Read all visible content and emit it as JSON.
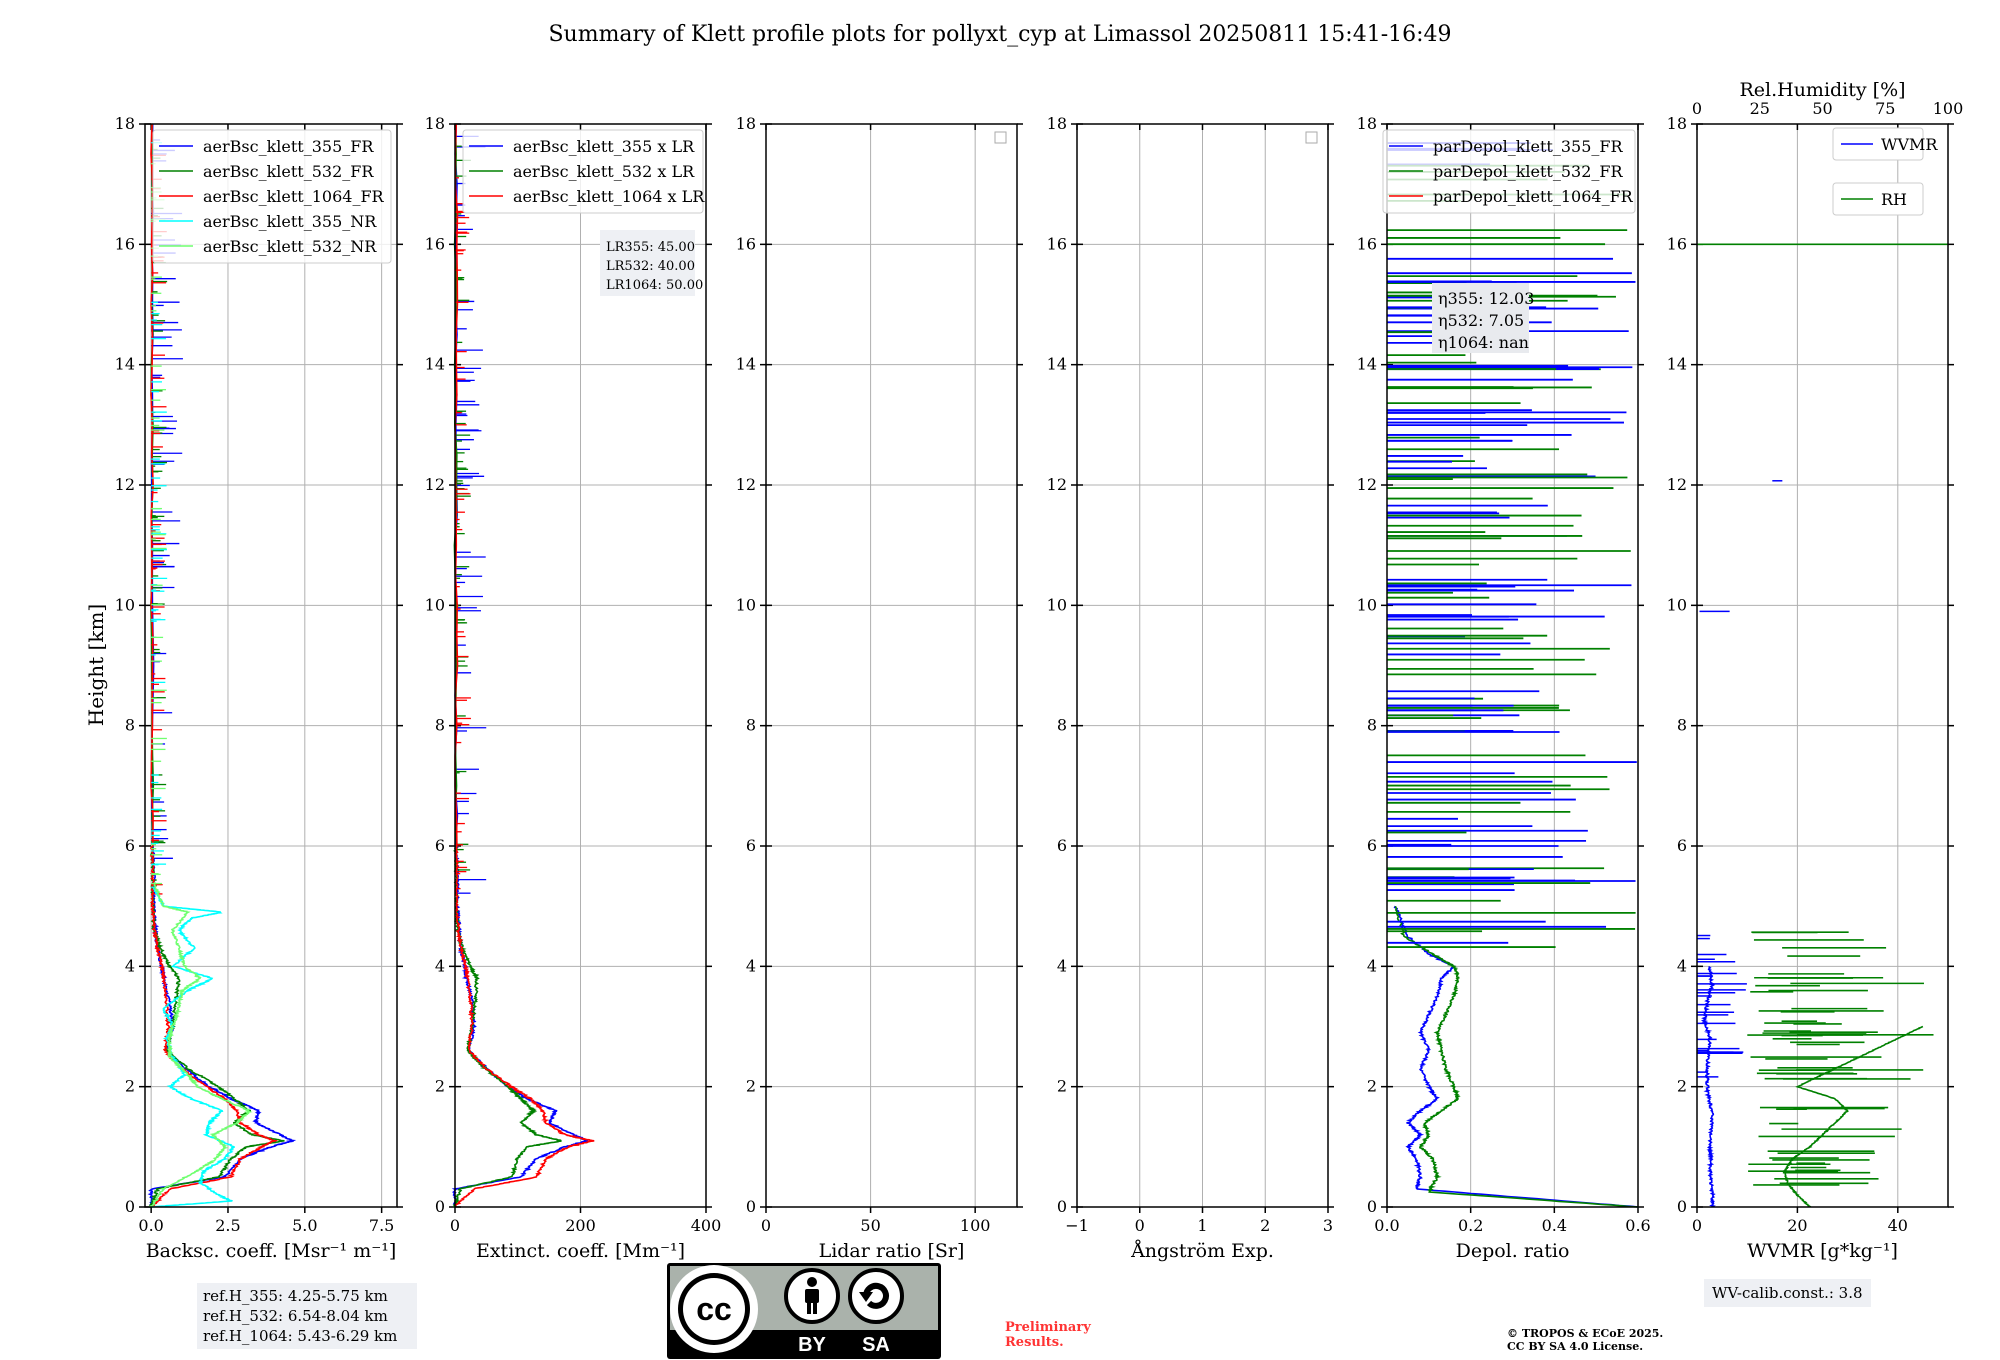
{
  "title": "Summary of Klett profile plots for pollyxt_cyp at Limassol 20250811 15:41-16:49",
  "colors": {
    "c355": "#0000ff",
    "c532": "#008000",
    "c1064": "#ff0000",
    "c355nr": "#00ffff",
    "c532nr": "#6fff6f",
    "grid": "#b0b0b0"
  },
  "chart_data": [
    {
      "type": "line",
      "name": "backscatter",
      "xlabel": "Backsc. coeff. [Msr⁻¹ m⁻¹]",
      "ylabel": "Height [km]",
      "xlim": [
        -0.2,
        8.0
      ],
      "ylim": [
        0,
        18
      ],
      "xticks": [
        0,
        2.5,
        5.0,
        7.5
      ],
      "xticklabels": [
        "0.0",
        "2.5",
        "5.0",
        "7.5"
      ],
      "yticks": [
        0,
        2,
        4,
        6,
        8,
        10,
        12,
        14,
        16,
        18
      ],
      "legend": [
        "aerBsc_klett_355_FR",
        "aerBsc_klett_532_FR",
        "aerBsc_klett_1064_FR",
        "aerBsc_klett_355_NR",
        "aerBsc_klett_532_NR"
      ],
      "series": [
        {
          "name": "aerBsc_klett_355_FR",
          "color": "#0000ff",
          "h": [
            0,
            0.3,
            0.5,
            0.8,
            1.0,
            1.1,
            1.2,
            1.4,
            1.6,
            1.8,
            2.0,
            2.3,
            2.6,
            3.0,
            3.4,
            3.8,
            4.0,
            4.3,
            4.6,
            5.0,
            5.5,
            6.0,
            18
          ],
          "v": [
            0,
            0,
            2.4,
            2.9,
            3.9,
            4.6,
            4.2,
            3.4,
            3.5,
            2.6,
            1.9,
            1.1,
            0.5,
            0.7,
            0.6,
            0.4,
            0.35,
            0.2,
            0.15,
            0.08,
            0.1,
            0.05,
            0.05
          ]
        },
        {
          "name": "aerBsc_klett_532_FR",
          "color": "#008000",
          "h": [
            0,
            0.3,
            0.5,
            0.8,
            1.0,
            1.1,
            1.2,
            1.4,
            1.6,
            1.8,
            2.0,
            2.3,
            2.6,
            3.0,
            3.4,
            3.8,
            4.0,
            4.3,
            4.6,
            5.0,
            5.5,
            6.0,
            18
          ],
          "v": [
            0,
            0.2,
            2.2,
            2.6,
            3.1,
            4.3,
            3.3,
            2.7,
            3.2,
            2.7,
            2.2,
            1.2,
            0.5,
            0.7,
            0.8,
            0.9,
            0.6,
            0.3,
            0.1,
            0.05,
            0.05,
            0.03,
            0.03
          ]
        },
        {
          "name": "aerBsc_klett_1064_FR",
          "color": "#ff0000",
          "h": [
            0,
            0.3,
            0.5,
            0.8,
            1.0,
            1.1,
            1.2,
            1.4,
            1.6,
            1.8,
            2.0,
            2.3,
            2.6,
            3.0,
            3.4,
            3.8,
            4.0,
            4.3,
            4.6,
            5.0,
            5.5,
            6.0,
            18
          ],
          "v": [
            0,
            0.6,
            2.6,
            2.9,
            3.6,
            4.0,
            3.5,
            2.9,
            2.8,
            2.4,
            1.8,
            1.0,
            0.45,
            0.55,
            0.5,
            0.4,
            0.35,
            0.2,
            0.1,
            0.05,
            0.05,
            0.03,
            0.03
          ]
        },
        {
          "name": "aerBsc_klett_355_NR",
          "color": "#00ffff",
          "h": [
            0,
            0.1,
            0.2,
            0.4,
            0.6,
            0.8,
            1.0,
            1.2,
            1.4,
            1.6,
            1.8,
            2.0,
            2.2,
            2.5,
            2.8,
            3.0,
            3.3,
            3.6,
            3.8,
            4.0,
            4.3,
            4.6,
            4.8,
            4.9,
            5.0,
            5.3
          ],
          "v": [
            0,
            2.6,
            2.2,
            1.6,
            1.7,
            2.4,
            2.7,
            1.8,
            1.9,
            2.3,
            1.3,
            0.6,
            1.1,
            0.7,
            0.5,
            0.7,
            0.4,
            1.2,
            2.0,
            0.7,
            1.4,
            0.9,
            1.3,
            2.3,
            0.4,
            0.1
          ]
        },
        {
          "name": "aerBsc_klett_532_NR",
          "color": "#6fff6f",
          "h": [
            0,
            0.3,
            0.6,
            0.8,
            1.0,
            1.2,
            1.4,
            1.6,
            1.8,
            2.0,
            2.2,
            2.5,
            2.8,
            3.0,
            3.3,
            3.6,
            3.8,
            4.0,
            4.3,
            4.6,
            4.9,
            5.0,
            5.4
          ],
          "v": [
            0,
            0.4,
            1.5,
            2.1,
            2.4,
            2.0,
            2.8,
            3.2,
            2.3,
            1.5,
            1.2,
            0.6,
            0.6,
            0.7,
            0.9,
            1.0,
            1.6,
            1.1,
            0.9,
            0.7,
            1.2,
            0.4,
            0.1
          ]
        }
      ]
    },
    {
      "type": "line",
      "name": "extinction",
      "xlabel": "Extinct. coeff. [Mm⁻¹]",
      "xlim": [
        0,
        400
      ],
      "ylim": [
        0,
        18
      ],
      "xticks": [
        0,
        200,
        400
      ],
      "xticklabels": [
        "0",
        "200",
        "400"
      ],
      "yticks": [
        0,
        2,
        4,
        6,
        8,
        10,
        12,
        14,
        16,
        18
      ],
      "legend": [
        "aerBsc_klett_355 x LR",
        "aerBsc_klett_532 x LR",
        "aerBsc_klett_1064 x LR"
      ],
      "series": [
        {
          "name": "aerBsc_klett_355 x LR",
          "color": "#0000ff",
          "h": [
            0,
            0.3,
            0.5,
            0.8,
            1.0,
            1.1,
            1.2,
            1.4,
            1.6,
            1.8,
            2.0,
            2.3,
            2.6,
            3.0,
            3.4,
            3.8,
            4.0,
            4.3,
            4.6,
            5.0,
            5.5,
            6.0,
            18
          ],
          "v": [
            0,
            0,
            105,
            130,
            175,
            210,
            190,
            150,
            160,
            115,
            85,
            50,
            22,
            30,
            28,
            18,
            16,
            9,
            7,
            4,
            4,
            2,
            2
          ]
        },
        {
          "name": "aerBsc_klett_532 x LR",
          "color": "#008000",
          "h": [
            0,
            0.3,
            0.5,
            0.8,
            1.0,
            1.1,
            1.2,
            1.4,
            1.6,
            1.8,
            2.0,
            2.3,
            2.6,
            3.0,
            3.4,
            3.8,
            4.0,
            4.3,
            4.6,
            5.0,
            5.5,
            6.0,
            18
          ],
          "v": [
            0,
            8,
            90,
            100,
            115,
            170,
            130,
            105,
            125,
            105,
            85,
            48,
            20,
            28,
            32,
            35,
            24,
            12,
            4,
            2,
            2,
            1,
            1
          ]
        },
        {
          "name": "aerBsc_klett_1064 x LR",
          "color": "#ff0000",
          "h": [
            0,
            0.3,
            0.5,
            0.8,
            1.0,
            1.1,
            1.2,
            1.4,
            1.6,
            1.8,
            2.0,
            2.3,
            2.6,
            3.0,
            3.4,
            3.8,
            4.0,
            4.3,
            4.6,
            5.0,
            5.5,
            6.0,
            18
          ],
          "v": [
            0,
            30,
            130,
            145,
            180,
            220,
            175,
            145,
            140,
            120,
            90,
            50,
            22,
            27,
            25,
            20,
            17,
            10,
            5,
            3,
            3,
            2,
            2
          ]
        }
      ]
    },
    {
      "type": "line",
      "name": "lidar_ratio",
      "xlabel": "Lidar ratio [Sr]",
      "xlim": [
        0,
        120
      ],
      "ylim": [
        0,
        18
      ],
      "xticks": [
        0,
        50,
        100
      ],
      "xticklabels": [
        "0",
        "50",
        "100"
      ],
      "yticks": [
        0,
        2,
        4,
        6,
        8,
        10,
        12,
        14,
        16,
        18
      ],
      "series": []
    },
    {
      "type": "line",
      "name": "angstrom",
      "xlabel": "Ångström Exp.",
      "xlim": [
        -1,
        3
      ],
      "ylim": [
        0,
        18
      ],
      "xticks": [
        -1,
        0,
        1,
        2,
        3
      ],
      "xticklabels": [
        "−1",
        "0",
        "1",
        "2",
        "3"
      ],
      "yticks": [
        0,
        2,
        4,
        6,
        8,
        10,
        12,
        14,
        16,
        18
      ],
      "series": []
    },
    {
      "type": "line",
      "name": "depol",
      "xlabel": "Depol. ratio",
      "xlim": [
        0,
        0.6
      ],
      "ylim": [
        0,
        18
      ],
      "xticks": [
        0,
        0.2,
        0.4,
        0.6
      ],
      "xticklabels": [
        "0.0",
        "0.2",
        "0.4",
        "0.6"
      ],
      "yticks": [
        0,
        2,
        4,
        6,
        8,
        10,
        12,
        14,
        16,
        18
      ],
      "legend": [
        "parDepol_klett_355_FR",
        "parDepol_klett_532_FR",
        "parDepol_klett_1064_FR"
      ],
      "series": [
        {
          "name": "parDepol_klett_355_FR",
          "color": "#0000ff",
          "h": [
            0,
            0.3,
            0.5,
            0.8,
            1.0,
            1.2,
            1.4,
            1.6,
            1.8,
            2.0,
            2.3,
            2.6,
            2.9,
            3.2,
            3.5,
            3.8,
            4.0,
            4.2,
            4.5,
            5.0
          ],
          "v": [
            0.6,
            0.07,
            0.08,
            0.07,
            0.05,
            0.08,
            0.05,
            0.08,
            0.12,
            0.1,
            0.08,
            0.1,
            0.08,
            0.1,
            0.12,
            0.13,
            0.16,
            0.1,
            0.05,
            0.02
          ]
        },
        {
          "name": "parDepol_klett_532_FR",
          "color": "#008000",
          "h": [
            0,
            0.25,
            0.5,
            0.8,
            1.0,
            1.2,
            1.4,
            1.6,
            1.8,
            2.0,
            2.3,
            2.6,
            2.9,
            3.2,
            3.5,
            3.8,
            4.0,
            4.2,
            4.5,
            5.0
          ],
          "v": [
            0.6,
            0.1,
            0.12,
            0.11,
            0.08,
            0.1,
            0.09,
            0.13,
            0.17,
            0.16,
            0.14,
            0.13,
            0.12,
            0.14,
            0.16,
            0.17,
            0.16,
            0.11,
            0.04,
            0.02
          ]
        }
      ]
    },
    {
      "type": "line",
      "name": "wvmr",
      "xlabel": "WVMR [g*kg⁻¹]",
      "xlim": [
        0,
        50
      ],
      "ylim": [
        0,
        18
      ],
      "xticks": [
        0,
        20,
        40
      ],
      "xticklabels": [
        "0",
        "20",
        "40"
      ],
      "yticks": [
        0,
        2,
        4,
        6,
        8,
        10,
        12,
        14,
        16,
        18
      ],
      "x2label": "Rel.Humidity [%]",
      "x2lim": [
        0,
        100
      ],
      "x2ticks": [
        0,
        25,
        50,
        75,
        100
      ],
      "legend": [
        "WVMR",
        "RH"
      ],
      "series": [
        {
          "name": "WVMR",
          "color": "#0000ff",
          "h": [
            0,
            0.2,
            0.5,
            0.8,
            1.0,
            1.3,
            1.6,
            1.9,
            2.2,
            2.5,
            2.8,
            3.1,
            3.4,
            3.7,
            4.0
          ],
          "v": [
            3,
            3.2,
            2.6,
            2.8,
            2.5,
            2.9,
            3.0,
            2.1,
            2.0,
            2.2,
            2.6,
            1.5,
            2.0,
            3.0,
            2.5
          ]
        },
        {
          "name": "RH",
          "color": "#008000",
          "axis": "x2",
          "h": [
            0,
            0.2,
            0.4,
            0.6,
            0.8,
            1.0,
            1.2,
            1.4,
            1.6,
            1.8,
            2.0,
            2.2,
            2.4,
            2.6,
            2.8,
            3.0
          ],
          "v": [
            45,
            40,
            36,
            35,
            38,
            45,
            50,
            55,
            60,
            55,
            40,
            50,
            60,
            70,
            80,
            90
          ]
        }
      ]
    }
  ],
  "annotations": {
    "lr": [
      "LR355: 45.00",
      "LR532: 40.00",
      "LR1064: 50.00"
    ],
    "eta": [
      "η355: 12.03",
      "η532: 7.05",
      "η1064: nan"
    ]
  },
  "ref_box": [
    "ref.H_355: 4.25-5.75 km",
    "ref.H_532: 6.54-8.04 km",
    "ref.H_1064: 5.43-6.29 km"
  ],
  "wv_calib": "WV-calib.const.: 3.8",
  "license": {
    "cc": "cc",
    "by": "BY",
    "sa": "SA"
  },
  "preliminary": [
    "Preliminary",
    "Results."
  ],
  "copyright": [
    "© TROPOS & ECoE 2025.",
    "CC BY SA 4.0 License."
  ]
}
